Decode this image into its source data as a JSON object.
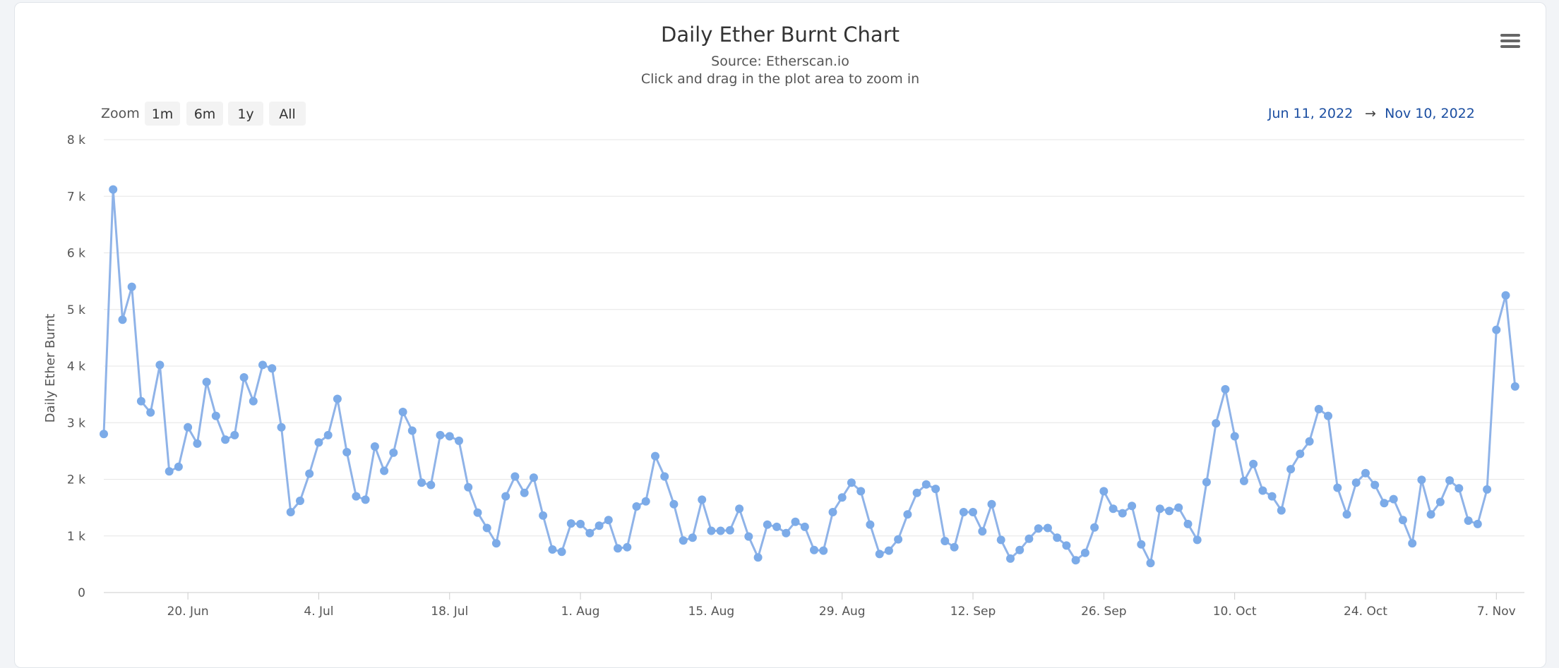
{
  "chart_data": {
    "type": "line",
    "title": "Daily Ether Burnt Chart",
    "subtitle_source": "Source: Etherscan.io",
    "subtitle_hint": "Click and drag in the plot area to zoom in",
    "ylabel": "Daily Ether Burnt",
    "xlabel": "",
    "ylim": [
      0,
      8000
    ],
    "y_ticks": [
      {
        "value": 0,
        "label": "0"
      },
      {
        "value": 1000,
        "label": "1 k"
      },
      {
        "value": 2000,
        "label": "2 k"
      },
      {
        "value": 3000,
        "label": "3 k"
      },
      {
        "value": 4000,
        "label": "4 k"
      },
      {
        "value": 5000,
        "label": "5 k"
      },
      {
        "value": 6000,
        "label": "6 k"
      },
      {
        "value": 7000,
        "label": "7 k"
      },
      {
        "value": 8000,
        "label": "8 k"
      }
    ],
    "x_start": "2022-06-11",
    "x_end": "2022-11-10",
    "x_ticks": [
      {
        "date": "2022-06-20",
        "label": "20. Jun"
      },
      {
        "date": "2022-07-04",
        "label": "4. Jul"
      },
      {
        "date": "2022-07-18",
        "label": "18. Jul"
      },
      {
        "date": "2022-08-01",
        "label": "1. Aug"
      },
      {
        "date": "2022-08-15",
        "label": "15. Aug"
      },
      {
        "date": "2022-08-29",
        "label": "29. Aug"
      },
      {
        "date": "2022-09-12",
        "label": "12. Sep"
      },
      {
        "date": "2022-09-26",
        "label": "26. Sep"
      },
      {
        "date": "2022-10-10",
        "label": "10. Oct"
      },
      {
        "date": "2022-10-24",
        "label": "24. Oct"
      },
      {
        "date": "2022-11-07",
        "label": "7. Nov"
      }
    ],
    "grid": true,
    "legend": "none",
    "line_color": "#8fb3e8",
    "point_color": "#7cabe8",
    "series": [
      {
        "start_date": "2022-06-11",
        "values": [
          2800,
          7120,
          4820,
          5400,
          3380,
          3180,
          4020,
          2140,
          2220,
          2920,
          2630,
          3720,
          3120,
          2700,
          2780,
          3800,
          3380,
          4020,
          3960,
          2920,
          1420,
          1620,
          2100,
          2650,
          2780,
          3420,
          2480,
          1700,
          1640,
          2580,
          2150,
          2470,
          3190,
          2860,
          1940,
          1900,
          2780,
          2760,
          2680,
          1860,
          1410,
          1140,
          870,
          1700,
          2050,
          1760,
          2030,
          1360,
          760,
          720,
          1220,
          1210,
          1050,
          1180,
          1280,
          780,
          800,
          1520,
          1610,
          2410,
          2050,
          1560,
          920,
          970,
          1640,
          1090,
          1090,
          1100,
          1480,
          990,
          620,
          1200,
          1160,
          1050,
          1250,
          1160,
          750,
          740,
          1420,
          1680,
          1940,
          1790,
          1200,
          680,
          740,
          940,
          1380,
          1760,
          1910,
          1830,
          910,
          800,
          1420,
          1420,
          1080,
          1560,
          930,
          600,
          750,
          950,
          1130,
          1140,
          970,
          830,
          570,
          700,
          1150,
          1790,
          1480,
          1400,
          1530,
          850,
          520,
          1480,
          1440,
          1500,
          1210,
          930,
          1950,
          2990,
          3590,
          2760,
          1970,
          2270,
          1800,
          1700,
          1450,
          2180,
          2450,
          2670,
          3240,
          3120,
          1850,
          1380,
          1940,
          2110,
          1900,
          1580,
          1650,
          1280,
          870,
          1990,
          1380,
          1600,
          1980,
          1840,
          1270,
          1210,
          1820,
          4640,
          5250,
          3640
        ]
      }
    ]
  },
  "zoom": {
    "label": "Zoom",
    "buttons": [
      "1m",
      "6m",
      "1y",
      "All"
    ]
  },
  "range": {
    "from": "Jun 11, 2022",
    "arrow": "→",
    "to": "Nov 10, 2022"
  }
}
